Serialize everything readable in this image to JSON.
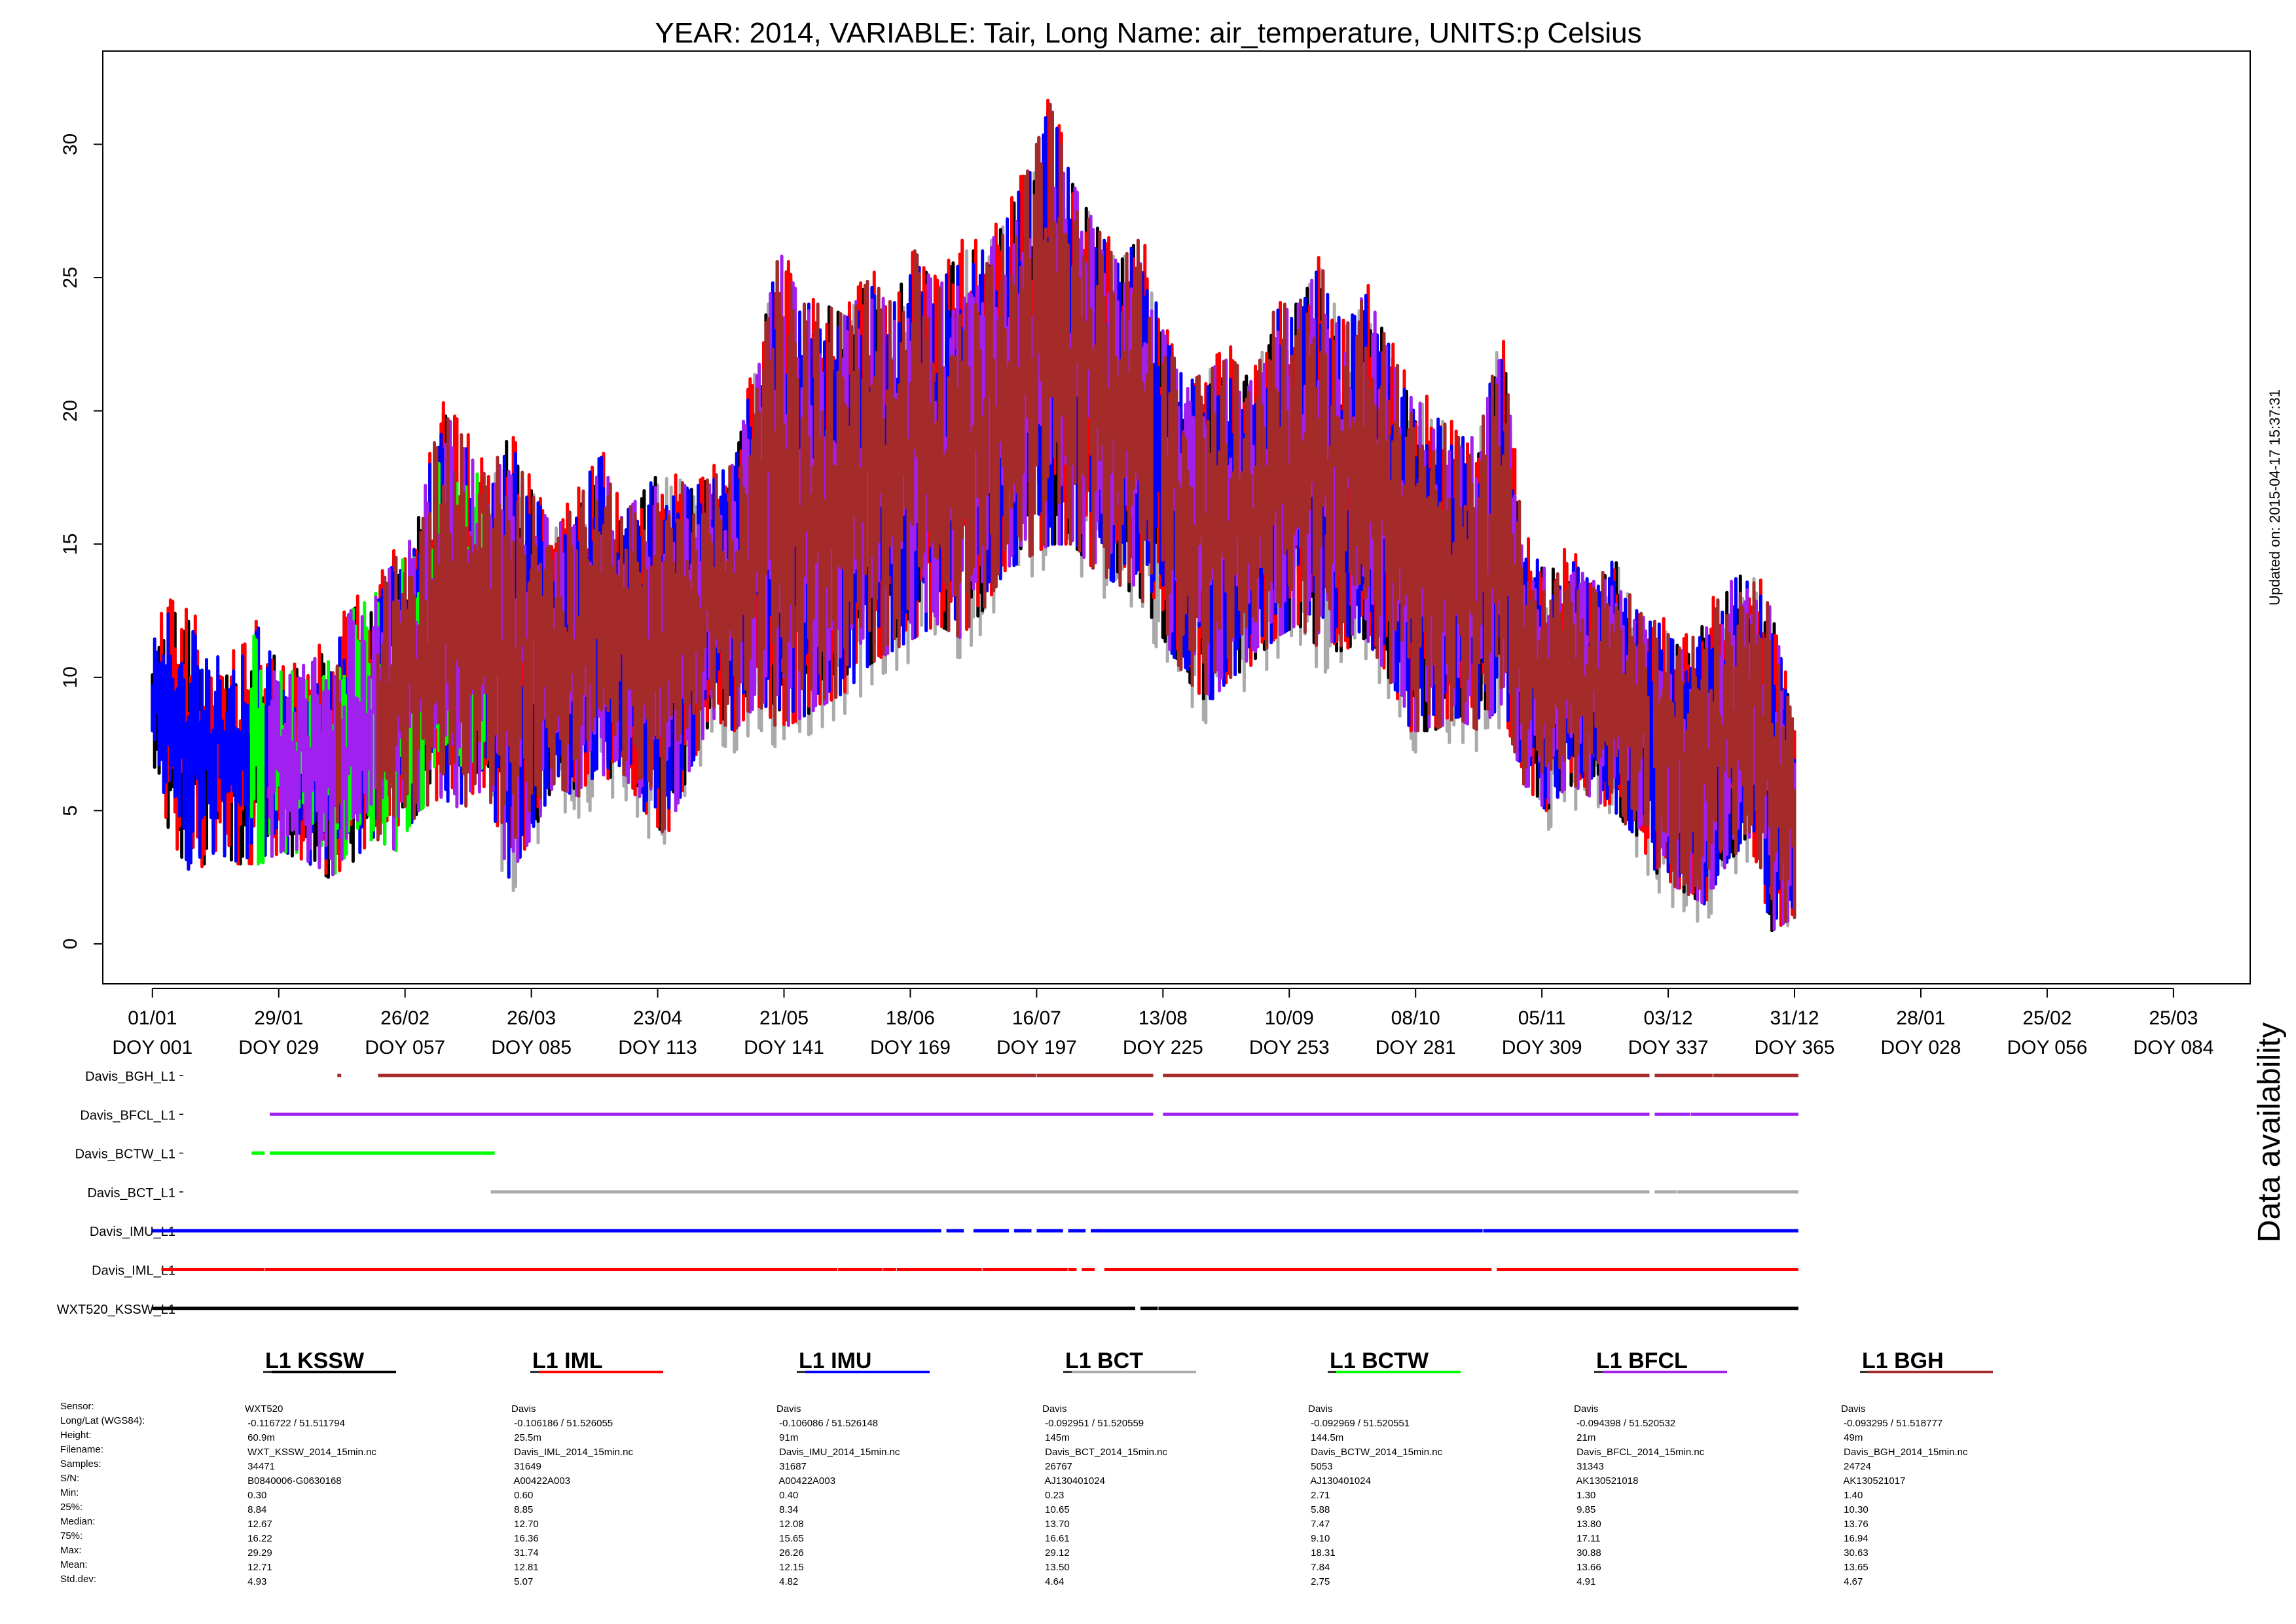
{
  "chart_data": {
    "type": "scatter",
    "title": "YEAR: 2014, VARIABLE: Tair, Long Name: air_temperature, UNITS:p Celsius",
    "updated_label": "Updated on: 2015-04-17 15:37:31",
    "side_label": "Data availability",
    "ylim": [
      -1.5,
      33.5
    ],
    "y_ticks": [
      0,
      5,
      10,
      15,
      20,
      25,
      30
    ],
    "x_axis_range_doy": [
      -10,
      466
    ],
    "x_ticks": [
      {
        "doy": 1,
        "date": "01/01",
        "label": "DOY 001"
      },
      {
        "doy": 29,
        "date": "29/01",
        "label": "DOY 029"
      },
      {
        "doy": 57,
        "date": "26/02",
        "label": "DOY 057"
      },
      {
        "doy": 85,
        "date": "26/03",
        "label": "DOY 085"
      },
      {
        "doy": 113,
        "date": "23/04",
        "label": "DOY 113"
      },
      {
        "doy": 141,
        "date": "21/05",
        "label": "DOY 141"
      },
      {
        "doy": 169,
        "date": "18/06",
        "label": "DOY 169"
      },
      {
        "doy": 197,
        "date": "16/07",
        "label": "DOY 197"
      },
      {
        "doy": 225,
        "date": "13/08",
        "label": "DOY 225"
      },
      {
        "doy": 253,
        "date": "10/09",
        "label": "DOY 253"
      },
      {
        "doy": 281,
        "date": "08/10",
        "label": "DOY 281"
      },
      {
        "doy": 309,
        "date": "05/11",
        "label": "DOY 309"
      },
      {
        "doy": 337,
        "date": "03/12",
        "label": "DOY 337"
      },
      {
        "doy": 365,
        "date": "31/12",
        "label": "DOY 365"
      },
      {
        "doy": 393,
        "date": "28/01",
        "label": "DOY 028"
      },
      {
        "doy": 421,
        "date": "25/02",
        "label": "DOY 056"
      },
      {
        "doy": 449,
        "date": "25/03",
        "label": "DOY 084"
      }
    ],
    "series": [
      {
        "name": "WXT520_KSSW_L1",
        "short": "L1 KSSW",
        "color": "#000000",
        "avail": [
          [
            1,
            218
          ],
          [
            220,
            223
          ],
          [
            224,
            365
          ]
        ]
      },
      {
        "name": "Davis_IML_L1",
        "short": "L1 IML",
        "color": "#ff0000",
        "avail": [
          [
            3,
            25
          ],
          [
            26,
            152
          ],
          [
            153,
            162
          ],
          [
            163,
            165
          ],
          [
            166,
            184
          ],
          [
            185,
            203
          ],
          [
            204,
            205
          ],
          [
            207,
            209
          ],
          [
            212,
            297
          ],
          [
            299,
            365
          ]
        ]
      },
      {
        "name": "Davis_IMU_L1",
        "short": "L1 IMU",
        "color": "#0000ff",
        "avail": [
          [
            1,
            175
          ],
          [
            177,
            180
          ],
          [
            183,
            190
          ],
          [
            192,
            195
          ],
          [
            197,
            202
          ],
          [
            204,
            207
          ],
          [
            209,
            295
          ],
          [
            296,
            365
          ]
        ]
      },
      {
        "name": "Davis_BCT_L1",
        "short": "L1 BCT",
        "color": "#aaaaaa",
        "avail": [
          [
            76,
            332
          ],
          [
            334,
            338
          ],
          [
            339,
            365
          ]
        ]
      },
      {
        "name": "Davis_BCTW_L1",
        "short": "L1 BCTW",
        "color": "#00ff00",
        "avail": [
          [
            23,
            25
          ],
          [
            27,
            76
          ]
        ]
      },
      {
        "name": "Davis_BFCL_L1",
        "short": "L1 BFCL",
        "color": "#a020f0",
        "avail": [
          [
            27,
            222
          ],
          [
            225,
            332
          ],
          [
            334,
            341
          ],
          [
            342,
            365
          ]
        ]
      },
      {
        "name": "Davis_BGH_L1",
        "short": "L1 BGH",
        "color": "#a52a2a",
        "avail": [
          [
            42,
            42
          ],
          [
            51,
            196
          ],
          [
            197,
            222
          ],
          [
            225,
            332
          ],
          [
            334,
            346
          ],
          [
            347,
            365
          ]
        ]
      }
    ],
    "temperature_envelope": [
      {
        "doy": 1,
        "min": 7.0,
        "max": 11.5
      },
      {
        "doy": 5,
        "min": 4.0,
        "max": 12.5
      },
      {
        "doy": 10,
        "min": 2.5,
        "max": 12.0
      },
      {
        "doy": 15,
        "min": 3.5,
        "max": 11.0
      },
      {
        "doy": 20,
        "min": 3.0,
        "max": 10.5
      },
      {
        "doy": 25,
        "min": 3.0,
        "max": 12.0
      },
      {
        "doy": 30,
        "min": 3.5,
        "max": 10.0
      },
      {
        "doy": 35,
        "min": 3.0,
        "max": 10.5
      },
      {
        "doy": 40,
        "min": 2.5,
        "max": 11.0
      },
      {
        "doy": 45,
        "min": 3.0,
        "max": 12.5
      },
      {
        "doy": 50,
        "min": 4.0,
        "max": 13.0
      },
      {
        "doy": 55,
        "min": 3.5,
        "max": 14.5
      },
      {
        "doy": 60,
        "min": 5.0,
        "max": 16.0
      },
      {
        "doy": 65,
        "min": 5.5,
        "max": 20.0
      },
      {
        "doy": 70,
        "min": 5.0,
        "max": 19.0
      },
      {
        "doy": 75,
        "min": 6.0,
        "max": 17.5
      },
      {
        "doy": 80,
        "min": 2.5,
        "max": 19.0
      },
      {
        "doy": 85,
        "min": 4.0,
        "max": 17.0
      },
      {
        "doy": 90,
        "min": 6.0,
        "max": 15.5
      },
      {
        "doy": 95,
        "min": 5.5,
        "max": 16.5
      },
      {
        "doy": 100,
        "min": 6.0,
        "max": 18.5
      },
      {
        "doy": 105,
        "min": 6.5,
        "max": 16.0
      },
      {
        "doy": 110,
        "min": 5.0,
        "max": 17.0
      },
      {
        "doy": 115,
        "min": 4.0,
        "max": 18.0
      },
      {
        "doy": 120,
        "min": 6.5,
        "max": 17.0
      },
      {
        "doy": 125,
        "min": 8.5,
        "max": 17.5
      },
      {
        "doy": 130,
        "min": 8.0,
        "max": 18.0
      },
      {
        "doy": 135,
        "min": 9.0,
        "max": 22.0
      },
      {
        "doy": 140,
        "min": 8.0,
        "max": 26.0
      },
      {
        "doy": 145,
        "min": 8.5,
        "max": 24.0
      },
      {
        "doy": 150,
        "min": 9.0,
        "max": 24.0
      },
      {
        "doy": 155,
        "min": 9.5,
        "max": 23.5
      },
      {
        "doy": 160,
        "min": 10.5,
        "max": 25.0
      },
      {
        "doy": 165,
        "min": 11.0,
        "max": 24.0
      },
      {
        "doy": 170,
        "min": 11.5,
        "max": 26.0
      },
      {
        "doy": 175,
        "min": 12.0,
        "max": 24.5
      },
      {
        "doy": 180,
        "min": 11.5,
        "max": 26.0
      },
      {
        "doy": 185,
        "min": 12.5,
        "max": 26.0
      },
      {
        "doy": 190,
        "min": 14.0,
        "max": 27.0
      },
      {
        "doy": 195,
        "min": 14.5,
        "max": 29.0
      },
      {
        "doy": 200,
        "min": 15.0,
        "max": 31.5
      },
      {
        "doy": 205,
        "min": 15.0,
        "max": 28.5
      },
      {
        "doy": 210,
        "min": 14.0,
        "max": 27.0
      },
      {
        "doy": 215,
        "min": 13.5,
        "max": 25.5
      },
      {
        "doy": 220,
        "min": 13.0,
        "max": 26.5
      },
      {
        "doy": 225,
        "min": 11.5,
        "max": 23.0
      },
      {
        "doy": 230,
        "min": 10.0,
        "max": 21.0
      },
      {
        "doy": 235,
        "min": 9.0,
        "max": 21.5
      },
      {
        "doy": 240,
        "min": 10.0,
        "max": 22.0
      },
      {
        "doy": 245,
        "min": 10.5,
        "max": 21.0
      },
      {
        "doy": 250,
        "min": 11.5,
        "max": 24.0
      },
      {
        "doy": 255,
        "min": 12.0,
        "max": 24.0
      },
      {
        "doy": 260,
        "min": 11.0,
        "max": 25.5
      },
      {
        "doy": 265,
        "min": 11.0,
        "max": 23.0
      },
      {
        "doy": 270,
        "min": 11.5,
        "max": 24.5
      },
      {
        "doy": 275,
        "min": 10.0,
        "max": 22.5
      },
      {
        "doy": 280,
        "min": 8.0,
        "max": 20.5
      },
      {
        "doy": 285,
        "min": 8.0,
        "max": 20.0
      },
      {
        "doy": 290,
        "min": 8.5,
        "max": 19.0
      },
      {
        "doy": 295,
        "min": 8.0,
        "max": 19.0
      },
      {
        "doy": 300,
        "min": 9.0,
        "max": 23.0
      },
      {
        "doy": 305,
        "min": 6.0,
        "max": 15.0
      },
      {
        "doy": 310,
        "min": 5.0,
        "max": 14.0
      },
      {
        "doy": 315,
        "min": 6.0,
        "max": 14.5
      },
      {
        "doy": 320,
        "min": 5.5,
        "max": 13.5
      },
      {
        "doy": 325,
        "min": 5.0,
        "max": 14.5
      },
      {
        "doy": 330,
        "min": 4.0,
        "max": 12.5
      },
      {
        "doy": 335,
        "min": 2.5,
        "max": 12.0
      },
      {
        "doy": 340,
        "min": 2.0,
        "max": 11.0
      },
      {
        "doy": 345,
        "min": 1.5,
        "max": 12.0
      },
      {
        "doy": 350,
        "min": 3.0,
        "max": 13.5
      },
      {
        "doy": 355,
        "min": 4.0,
        "max": 14.0
      },
      {
        "doy": 360,
        "min": 0.5,
        "max": 12.5
      },
      {
        "doy": 365,
        "min": 1.0,
        "max": 8.0
      }
    ],
    "statistics": {
      "row_labels": [
        "Sensor:",
        "Long/Lat (WGS84):",
        "Height:",
        "Filename:",
        "Samples:",
        "S/N:",
        "Min:",
        "25%:",
        "Median:",
        "75%:",
        "Max:",
        "Mean:",
        "Std.dev:"
      ],
      "columns": [
        [
          "WXT520",
          "-0.116722 / 51.511794",
          "60.9m",
          "WXT_KSSW_2014_15min.nc",
          "34471",
          "B0840006-G0630168",
          "0.30",
          "8.84",
          "12.67",
          "16.22",
          "29.29",
          "12.71",
          "4.93"
        ],
        [
          "Davis",
          "-0.106186 / 51.526055",
          "25.5m",
          "Davis_IML_2014_15min.nc",
          "31649",
          "A00422A003",
          "0.60",
          "8.85",
          "12.70",
          "16.36",
          "31.74",
          "12.81",
          "5.07"
        ],
        [
          "Davis",
          "-0.106086 / 51.526148",
          "91m",
          "Davis_IMU_2014_15min.nc",
          "31687",
          "A00422A003",
          "0.40",
          "8.34",
          "12.08",
          "15.65",
          "26.26",
          "12.15",
          "4.82"
        ],
        [
          "Davis",
          "-0.092951 / 51.520559",
          "145m",
          "Davis_BCT_2014_15min.nc",
          "26767",
          "AJ130401024",
          "0.23",
          "10.65",
          "13.70",
          "16.61",
          "29.12",
          "13.50",
          "4.64"
        ],
        [
          "Davis",
          "-0.092969 / 51.520551",
          "144.5m",
          "Davis_BCTW_2014_15min.nc",
          "5053",
          "AJ130401024",
          "2.71",
          "5.88",
          "7.47",
          "9.10",
          "18.31",
          "7.84",
          "2.75"
        ],
        [
          "Davis",
          "-0.094398 / 51.520532",
          "21m",
          "Davis_BFCL_2014_15min.nc",
          "31343",
          "AK130521018",
          "1.30",
          "9.85",
          "13.80",
          "17.11",
          "30.88",
          "13.66",
          "4.91"
        ],
        [
          "Davis",
          "-0.093295 / 51.518777",
          "49m",
          "Davis_BGH_2014_15min.nc",
          "24724",
          "AK130521017",
          "1.40",
          "10.30",
          "13.76",
          "16.94",
          "30.63",
          "13.65",
          "4.67"
        ]
      ]
    }
  }
}
